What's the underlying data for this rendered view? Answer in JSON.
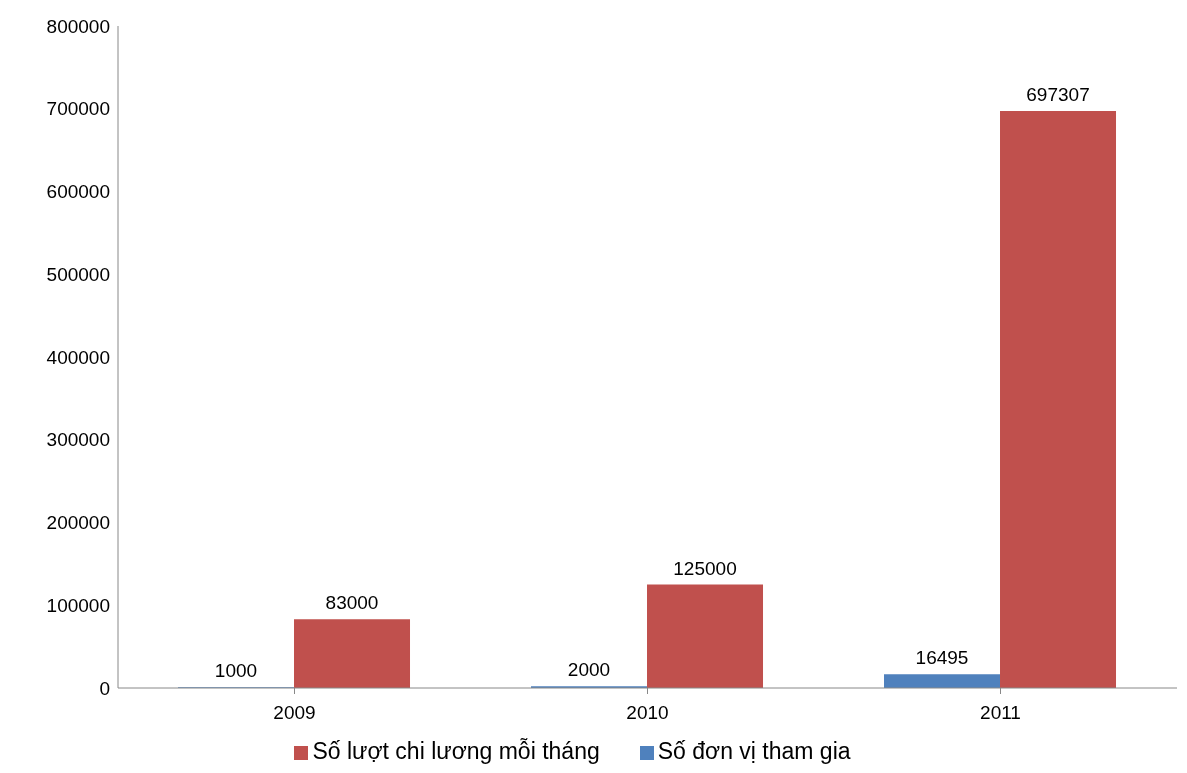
{
  "chart_data": {
    "type": "bar",
    "categories": [
      "2009",
      "2010",
      "2011"
    ],
    "series": [
      {
        "name": "Số đơn vị tham gia",
        "color": "#4f81bd",
        "values": [
          1000,
          2000,
          16495
        ]
      },
      {
        "name": "Số lượt chi lương mỗi tháng",
        "color": "#c0504d",
        "values": [
          83000,
          125000,
          697307
        ]
      }
    ],
    "ylim": [
      0,
      800000
    ],
    "yticks": [
      0,
      100000,
      200000,
      300000,
      400000,
      500000,
      600000,
      700000,
      800000
    ],
    "grid": false,
    "legend": "bottom",
    "data_labels": true
  }
}
